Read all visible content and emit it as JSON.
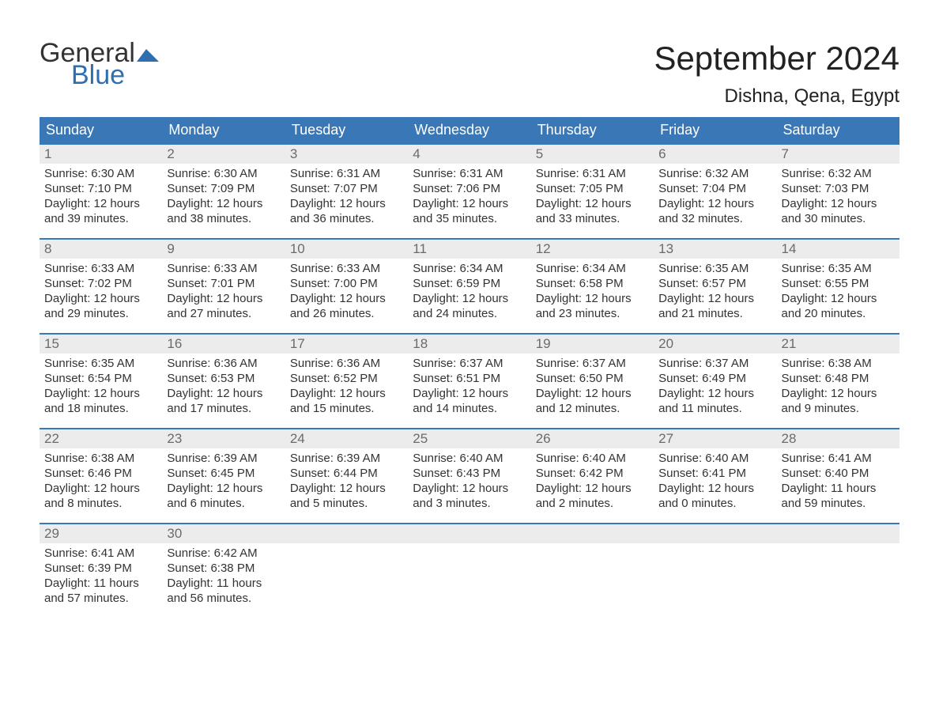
{
  "logo": {
    "word1": "General",
    "word2": "Blue",
    "accent_color": "#2f6fb0"
  },
  "title": "September 2024",
  "location": "Dishna, Qena, Egypt",
  "colors": {
    "header_bg": "#3a77b6",
    "header_text": "#ffffff",
    "daynum_bg": "#ececec",
    "daynum_text": "#6b6b6b",
    "body_text": "#333333",
    "week_border": "#3a77b6",
    "page_bg": "#ffffff"
  },
  "typography": {
    "title_fontsize": 42,
    "location_fontsize": 24,
    "weekday_fontsize": 18,
    "daynum_fontsize": 17,
    "body_fontsize": 15
  },
  "weekdays": [
    "Sunday",
    "Monday",
    "Tuesday",
    "Wednesday",
    "Thursday",
    "Friday",
    "Saturday"
  ],
  "weeks": [
    [
      {
        "day": "1",
        "sunrise": "Sunrise: 6:30 AM",
        "sunset": "Sunset: 7:10 PM",
        "daylight": "Daylight: 12 hours and 39 minutes."
      },
      {
        "day": "2",
        "sunrise": "Sunrise: 6:30 AM",
        "sunset": "Sunset: 7:09 PM",
        "daylight": "Daylight: 12 hours and 38 minutes."
      },
      {
        "day": "3",
        "sunrise": "Sunrise: 6:31 AM",
        "sunset": "Sunset: 7:07 PM",
        "daylight": "Daylight: 12 hours and 36 minutes."
      },
      {
        "day": "4",
        "sunrise": "Sunrise: 6:31 AM",
        "sunset": "Sunset: 7:06 PM",
        "daylight": "Daylight: 12 hours and 35 minutes."
      },
      {
        "day": "5",
        "sunrise": "Sunrise: 6:31 AM",
        "sunset": "Sunset: 7:05 PM",
        "daylight": "Daylight: 12 hours and 33 minutes."
      },
      {
        "day": "6",
        "sunrise": "Sunrise: 6:32 AM",
        "sunset": "Sunset: 7:04 PM",
        "daylight": "Daylight: 12 hours and 32 minutes."
      },
      {
        "day": "7",
        "sunrise": "Sunrise: 6:32 AM",
        "sunset": "Sunset: 7:03 PM",
        "daylight": "Daylight: 12 hours and 30 minutes."
      }
    ],
    [
      {
        "day": "8",
        "sunrise": "Sunrise: 6:33 AM",
        "sunset": "Sunset: 7:02 PM",
        "daylight": "Daylight: 12 hours and 29 minutes."
      },
      {
        "day": "9",
        "sunrise": "Sunrise: 6:33 AM",
        "sunset": "Sunset: 7:01 PM",
        "daylight": "Daylight: 12 hours and 27 minutes."
      },
      {
        "day": "10",
        "sunrise": "Sunrise: 6:33 AM",
        "sunset": "Sunset: 7:00 PM",
        "daylight": "Daylight: 12 hours and 26 minutes."
      },
      {
        "day": "11",
        "sunrise": "Sunrise: 6:34 AM",
        "sunset": "Sunset: 6:59 PM",
        "daylight": "Daylight: 12 hours and 24 minutes."
      },
      {
        "day": "12",
        "sunrise": "Sunrise: 6:34 AM",
        "sunset": "Sunset: 6:58 PM",
        "daylight": "Daylight: 12 hours and 23 minutes."
      },
      {
        "day": "13",
        "sunrise": "Sunrise: 6:35 AM",
        "sunset": "Sunset: 6:57 PM",
        "daylight": "Daylight: 12 hours and 21 minutes."
      },
      {
        "day": "14",
        "sunrise": "Sunrise: 6:35 AM",
        "sunset": "Sunset: 6:55 PM",
        "daylight": "Daylight: 12 hours and 20 minutes."
      }
    ],
    [
      {
        "day": "15",
        "sunrise": "Sunrise: 6:35 AM",
        "sunset": "Sunset: 6:54 PM",
        "daylight": "Daylight: 12 hours and 18 minutes."
      },
      {
        "day": "16",
        "sunrise": "Sunrise: 6:36 AM",
        "sunset": "Sunset: 6:53 PM",
        "daylight": "Daylight: 12 hours and 17 minutes."
      },
      {
        "day": "17",
        "sunrise": "Sunrise: 6:36 AM",
        "sunset": "Sunset: 6:52 PM",
        "daylight": "Daylight: 12 hours and 15 minutes."
      },
      {
        "day": "18",
        "sunrise": "Sunrise: 6:37 AM",
        "sunset": "Sunset: 6:51 PM",
        "daylight": "Daylight: 12 hours and 14 minutes."
      },
      {
        "day": "19",
        "sunrise": "Sunrise: 6:37 AM",
        "sunset": "Sunset: 6:50 PM",
        "daylight": "Daylight: 12 hours and 12 minutes."
      },
      {
        "day": "20",
        "sunrise": "Sunrise: 6:37 AM",
        "sunset": "Sunset: 6:49 PM",
        "daylight": "Daylight: 12 hours and 11 minutes."
      },
      {
        "day": "21",
        "sunrise": "Sunrise: 6:38 AM",
        "sunset": "Sunset: 6:48 PM",
        "daylight": "Daylight: 12 hours and 9 minutes."
      }
    ],
    [
      {
        "day": "22",
        "sunrise": "Sunrise: 6:38 AM",
        "sunset": "Sunset: 6:46 PM",
        "daylight": "Daylight: 12 hours and 8 minutes."
      },
      {
        "day": "23",
        "sunrise": "Sunrise: 6:39 AM",
        "sunset": "Sunset: 6:45 PM",
        "daylight": "Daylight: 12 hours and 6 minutes."
      },
      {
        "day": "24",
        "sunrise": "Sunrise: 6:39 AM",
        "sunset": "Sunset: 6:44 PM",
        "daylight": "Daylight: 12 hours and 5 minutes."
      },
      {
        "day": "25",
        "sunrise": "Sunrise: 6:40 AM",
        "sunset": "Sunset: 6:43 PM",
        "daylight": "Daylight: 12 hours and 3 minutes."
      },
      {
        "day": "26",
        "sunrise": "Sunrise: 6:40 AM",
        "sunset": "Sunset: 6:42 PM",
        "daylight": "Daylight: 12 hours and 2 minutes."
      },
      {
        "day": "27",
        "sunrise": "Sunrise: 6:40 AM",
        "sunset": "Sunset: 6:41 PM",
        "daylight": "Daylight: 12 hours and 0 minutes."
      },
      {
        "day": "28",
        "sunrise": "Sunrise: 6:41 AM",
        "sunset": "Sunset: 6:40 PM",
        "daylight": "Daylight: 11 hours and 59 minutes."
      }
    ],
    [
      {
        "day": "29",
        "sunrise": "Sunrise: 6:41 AM",
        "sunset": "Sunset: 6:39 PM",
        "daylight": "Daylight: 11 hours and 57 minutes."
      },
      {
        "day": "30",
        "sunrise": "Sunrise: 6:42 AM",
        "sunset": "Sunset: 6:38 PM",
        "daylight": "Daylight: 11 hours and 56 minutes."
      },
      {
        "empty": true
      },
      {
        "empty": true
      },
      {
        "empty": true
      },
      {
        "empty": true
      },
      {
        "empty": true
      }
    ]
  ]
}
